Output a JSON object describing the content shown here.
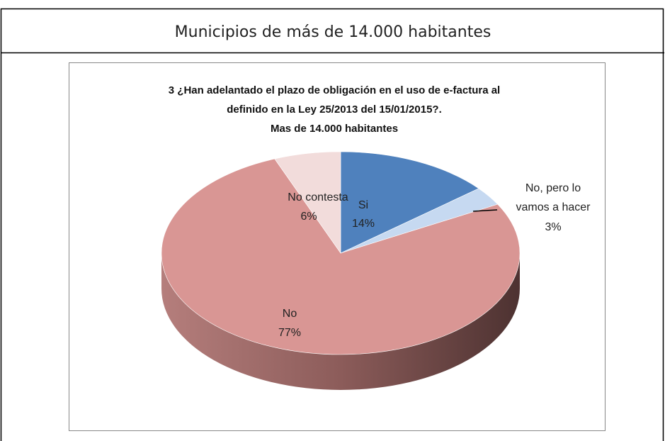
{
  "header": {
    "title": "Municipios de más de 14.000 habitantes"
  },
  "chart_data": {
    "type": "pie",
    "title": [
      "3 ¿Han adelantado el plazo de obligación en el uso de e-factura al",
      "definido en la Ley 25/2013 del 15/01/2015?.",
      "Mas de 14.000 habitantes"
    ],
    "categories": [
      "Si",
      "No, pero lo vamos a hacer",
      "No",
      "No contesta"
    ],
    "values": [
      14,
      3,
      77,
      6
    ],
    "value_labels": [
      "14%",
      "3%",
      "77%",
      "6%"
    ],
    "colors": [
      "#4f81bd",
      "#c6d9f1",
      "#d99694",
      "#f2dcdb"
    ]
  }
}
